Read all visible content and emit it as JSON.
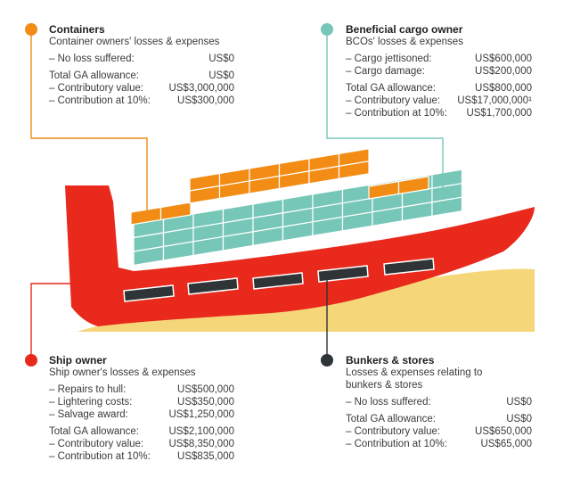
{
  "colors": {
    "containers": "#f28c14",
    "cargo": "#76c7b8",
    "ship": "#e8291c",
    "bunkers": "#2f3437",
    "sand": "#f5d77a"
  },
  "containers": {
    "title": "Containers",
    "subtitle": "Container owners' losses & expenses",
    "rows": [
      {
        "label": "– No loss suffered:",
        "value": "US$0"
      },
      {
        "label": "Total GA allowance:",
        "value": "US$0"
      },
      {
        "label": "– Contributory value:",
        "value": "US$3,000,000"
      },
      {
        "label": "– Contribution at 10%:",
        "value": "US$300,000"
      }
    ]
  },
  "cargo_owner": {
    "title": "Beneficial cargo owner",
    "subtitle": "BCOs' losses & expenses",
    "rows": [
      {
        "label": "– Cargo jettisoned:",
        "value": "US$600,000"
      },
      {
        "label": "– Cargo damage:",
        "value": "US$200,000"
      },
      {
        "label": "Total GA allowance:",
        "value": "US$800,000"
      },
      {
        "label": "– Contributory value:",
        "value": "US$17,000,000¹"
      },
      {
        "label": "– Contribution at 10%:",
        "value": "US$1,700,000"
      }
    ]
  },
  "ship_owner": {
    "title": "Ship owner",
    "subtitle": "Ship owner's losses & expenses",
    "rows": [
      {
        "label": "– Repairs to hull:",
        "value": "US$500,000"
      },
      {
        "label": "– Lightering costs:",
        "value": "US$350,000"
      },
      {
        "label": "– Salvage award:",
        "value": "US$1,250,000"
      },
      {
        "label": "Total GA allowance:",
        "value": "US$2,100,000"
      },
      {
        "label": "– Contributory value:",
        "value": "US$8,350,000"
      },
      {
        "label": "– Contribution at 10%:",
        "value": "US$835,000"
      }
    ]
  },
  "bunkers": {
    "title": "Bunkers & stores",
    "subtitle": "Losses & expenses relating to bunkers & stores",
    "rows": [
      {
        "label": "– No loss suffered:",
        "value": "US$0"
      },
      {
        "label": "Total GA allowance:",
        "value": "US$0"
      },
      {
        "label": "– Contributory value:",
        "value": "US$650,000"
      },
      {
        "label": "– Contribution at 10%:",
        "value": "US$65,000"
      }
    ]
  }
}
